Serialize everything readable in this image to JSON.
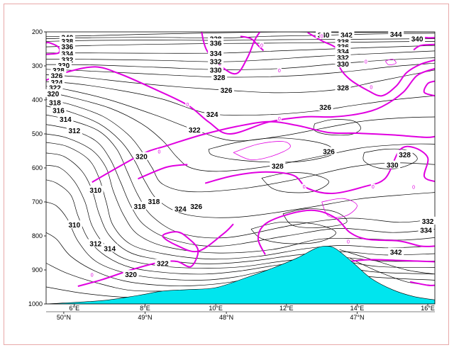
{
  "chart_data": {
    "type": "contour",
    "colors": {
      "isentrope": "#000000",
      "pv_line": "#e000e0",
      "terrain": "#00e5ee",
      "frame": "#e8a8a8"
    },
    "grid": false,
    "xlim": [
      5.2,
      16.2
    ],
    "ylim": [
      1000,
      200
    ],
    "y_ticks": [
      "200",
      "300",
      "400",
      "500",
      "600",
      "700",
      "800",
      "900",
      "1000"
    ],
    "x_ticks_lon": [
      {
        "label": "6°E",
        "x": 6
      },
      {
        "label": "8°E",
        "x": 8
      },
      {
        "label": "10°E",
        "x": 10
      },
      {
        "label": "12°E",
        "x": 12
      },
      {
        "label": "14°E",
        "x": 14
      },
      {
        "label": "16°E",
        "x": 16
      }
    ],
    "x_ticks_lat": [
      {
        "label": "50°N",
        "x": 5.7
      },
      {
        "label": "49°N",
        "x": 8.0
      },
      {
        "label": "48°N",
        "x": 10.3
      },
      {
        "label": "47°N",
        "x": 14.0
      }
    ],
    "isentrope_labels": [
      {
        "text": "338",
        "x": 10.0,
        "p": 220
      },
      {
        "text": "340",
        "x": 5.8,
        "p": 216
      },
      {
        "text": "338",
        "x": 5.8,
        "p": 227
      },
      {
        "text": "336",
        "x": 5.8,
        "p": 243
      },
      {
        "text": "336",
        "x": 10.0,
        "p": 232
      },
      {
        "text": "334",
        "x": 5.8,
        "p": 264
      },
      {
        "text": "334",
        "x": 10.0,
        "p": 263
      },
      {
        "text": "332",
        "x": 5.8,
        "p": 281
      },
      {
        "text": "332",
        "x": 10.0,
        "p": 286
      },
      {
        "text": "330",
        "x": 5.7,
        "p": 298
      },
      {
        "text": "330",
        "x": 10.0,
        "p": 311
      },
      {
        "text": "328",
        "x": 5.55,
        "p": 313
      },
      {
        "text": "328",
        "x": 10.1,
        "p": 333
      },
      {
        "text": "326",
        "x": 5.5,
        "p": 328
      },
      {
        "text": "326",
        "x": 10.3,
        "p": 371
      },
      {
        "text": "324",
        "x": 5.5,
        "p": 348
      },
      {
        "text": "322",
        "x": 5.45,
        "p": 364
      },
      {
        "text": "320",
        "x": 5.4,
        "p": 381
      },
      {
        "text": "318",
        "x": 5.45,
        "p": 407
      },
      {
        "text": "316",
        "x": 5.55,
        "p": 430
      },
      {
        "text": "314",
        "x": 5.75,
        "p": 456
      },
      {
        "text": "312",
        "x": 6.0,
        "p": 490
      },
      {
        "text": "324",
        "x": 9.9,
        "p": 442
      },
      {
        "text": "322",
        "x": 9.4,
        "p": 487
      },
      {
        "text": "320",
        "x": 7.9,
        "p": 566
      },
      {
        "text": "328",
        "x": 11.75,
        "p": 594
      },
      {
        "text": "326",
        "x": 13.2,
        "p": 551
      },
      {
        "text": "328",
        "x": 15.35,
        "p": 560
      },
      {
        "text": "330",
        "x": 15.0,
        "p": 591
      },
      {
        "text": "310",
        "x": 6.6,
        "p": 665
      },
      {
        "text": "318",
        "x": 7.85,
        "p": 712
      },
      {
        "text": "318",
        "x": 8.25,
        "p": 698
      },
      {
        "text": "324",
        "x": 9.0,
        "p": 720
      },
      {
        "text": "326",
        "x": 9.45,
        "p": 712
      },
      {
        "text": "310",
        "x": 6.0,
        "p": 767
      },
      {
        "text": "312",
        "x": 6.6,
        "p": 822
      },
      {
        "text": "314",
        "x": 7.0,
        "p": 836
      },
      {
        "text": "320",
        "x": 7.6,
        "p": 913
      },
      {
        "text": "322",
        "x": 8.5,
        "p": 880
      },
      {
        "text": "332",
        "x": 16.0,
        "p": 756
      },
      {
        "text": "334",
        "x": 15.95,
        "p": 782
      },
      {
        "text": "342",
        "x": 15.1,
        "p": 847
      },
      {
        "text": "340",
        "x": 13.05,
        "p": 208
      },
      {
        "text": "342",
        "x": 13.7,
        "p": 208
      },
      {
        "text": "344",
        "x": 15.1,
        "p": 206
      },
      {
        "text": "340",
        "x": 15.7,
        "p": 220
      },
      {
        "text": "338",
        "x": 13.6,
        "p": 228
      },
      {
        "text": "336",
        "x": 13.6,
        "p": 243
      },
      {
        "text": "334",
        "x": 13.6,
        "p": 257
      },
      {
        "text": "332",
        "x": 13.6,
        "p": 275
      },
      {
        "text": "330",
        "x": 13.6,
        "p": 294
      },
      {
        "text": "328",
        "x": 13.6,
        "p": 364
      },
      {
        "text": "326",
        "x": 13.1,
        "p": 421
      }
    ],
    "pv_labels": [
      {
        "text": "0",
        "x": 11.3,
        "p": 240
      },
      {
        "text": "0",
        "x": 13.0,
        "p": 212
      },
      {
        "text": "0",
        "x": 14.25,
        "p": 288
      },
      {
        "text": "0",
        "x": 11.8,
        "p": 314
      },
      {
        "text": "0",
        "x": 14.4,
        "p": 363
      },
      {
        "text": "0",
        "x": 9.2,
        "p": 414
      },
      {
        "text": "0",
        "x": 11.8,
        "p": 455
      },
      {
        "text": "0",
        "x": 8.4,
        "p": 552
      },
      {
        "text": "0",
        "x": 12.5,
        "p": 655
      },
      {
        "text": "0",
        "x": 14.45,
        "p": 655
      },
      {
        "text": "0",
        "x": 15.6,
        "p": 656
      },
      {
        "text": "0",
        "x": 13.75,
        "p": 817
      },
      {
        "text": "0",
        "x": 6.5,
        "p": 915
      }
    ],
    "terrain_surface": [
      {
        "x": 5.2,
        "p": 1000
      },
      {
        "x": 6.8,
        "p": 990
      },
      {
        "x": 7.8,
        "p": 975
      },
      {
        "x": 8.5,
        "p": 962
      },
      {
        "x": 9.2,
        "p": 958
      },
      {
        "x": 10.0,
        "p": 952
      },
      {
        "x": 10.8,
        "p": 925
      },
      {
        "x": 11.6,
        "p": 895
      },
      {
        "x": 12.3,
        "p": 865
      },
      {
        "x": 12.8,
        "p": 838
      },
      {
        "x": 13.1,
        "p": 830
      },
      {
        "x": 13.4,
        "p": 838
      },
      {
        "x": 13.9,
        "p": 880
      },
      {
        "x": 14.4,
        "p": 925
      },
      {
        "x": 15.0,
        "p": 958
      },
      {
        "x": 15.6,
        "p": 978
      },
      {
        "x": 16.2,
        "p": 988
      }
    ]
  }
}
